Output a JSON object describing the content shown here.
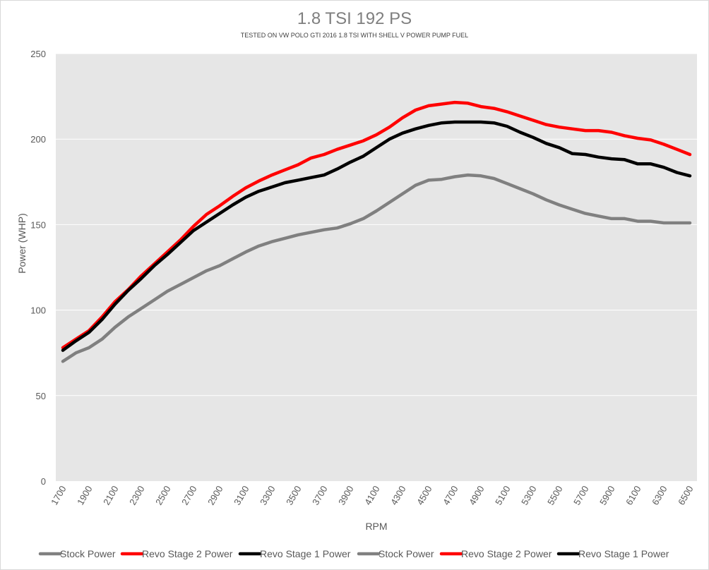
{
  "chart_data": {
    "type": "line",
    "title": "1.8 TSI 192 PS",
    "subtitle": "TESTED ON VW POLO GTI 2016 1.8 TSI WITH SHELL V POWER PUMP FUEL",
    "xlabel": "RPM",
    "ylabel": "Power (WHP)",
    "ylim": [
      0,
      250
    ],
    "yticks": [
      0,
      50,
      100,
      150,
      200,
      250
    ],
    "xlim": [
      1700,
      6500
    ],
    "xticks": [
      1700,
      1900,
      2100,
      2300,
      2500,
      2700,
      2900,
      3100,
      3300,
      3500,
      3700,
      3900,
      4100,
      4300,
      4500,
      4700,
      4900,
      5100,
      5300,
      5500,
      5700,
      5900,
      6100,
      6300,
      6500
    ],
    "grid": true,
    "legend_position": "bottom",
    "x": [
      1700,
      1800,
      1900,
      2000,
      2100,
      2200,
      2300,
      2400,
      2500,
      2600,
      2700,
      2800,
      2900,
      3000,
      3100,
      3200,
      3300,
      3400,
      3500,
      3600,
      3700,
      3800,
      3900,
      4000,
      4100,
      4200,
      4300,
      4400,
      4500,
      4600,
      4700,
      4800,
      4900,
      5000,
      5100,
      5200,
      5300,
      5400,
      5500,
      5600,
      5700,
      5800,
      5900,
      6000,
      6100,
      6200,
      6300,
      6400,
      6500
    ],
    "series": [
      {
        "name": "Stock Power",
        "color": "#808080",
        "values": [
          70,
          75,
          78,
          83,
          90,
          96,
          101,
          106,
          111,
          115,
          119,
          123,
          126,
          130,
          134,
          137.5,
          140,
          142,
          144,
          145.5,
          147,
          148,
          150.5,
          153.5,
          158,
          163,
          168,
          173,
          176,
          176.5,
          178,
          179,
          178.5,
          177,
          174,
          171,
          168,
          164.5,
          161.5,
          159,
          156.5,
          155,
          153.5,
          153.5,
          152,
          152,
          151,
          151,
          151
        ]
      },
      {
        "name": "Revo Stage 2 Power",
        "color": "#ff0000",
        "values": [
          78,
          83,
          88,
          96,
          105,
          112,
          120,
          127,
          134,
          141,
          149,
          156,
          161,
          166.5,
          171.5,
          175.5,
          179,
          182,
          185,
          189,
          191,
          194,
          196.5,
          199,
          202.5,
          207,
          212.5,
          217,
          219.5,
          220.5,
          221.5,
          221,
          219,
          218,
          216,
          213.5,
          211,
          208.5,
          207,
          206,
          205,
          205,
          204,
          202,
          200.5,
          199.5,
          197,
          194,
          191
        ]
      },
      {
        "name": "Revo Stage 1 Power",
        "color": "#000000",
        "values": [
          76.5,
          82,
          87,
          94.5,
          103.5,
          111.5,
          118.5,
          126,
          132.5,
          139.5,
          146.5,
          151.5,
          156.5,
          161.5,
          166,
          169.5,
          172,
          174.5,
          176,
          177.5,
          179,
          182.5,
          186.5,
          190,
          195,
          200,
          203.5,
          206,
          208,
          209.5,
          210,
          210,
          210,
          209.5,
          207.5,
          204,
          201,
          197.5,
          195,
          191.5,
          191,
          189.5,
          188.5,
          188,
          185.5,
          185.5,
          183.5,
          180.5,
          178.5
        ]
      }
    ],
    "legend_entries": [
      "Stock Power",
      "Revo Stage 2 Power",
      "Revo Stage 1 Power",
      "Stock Power",
      "Revo Stage 2 Power",
      "Revo Stage 1 Power"
    ],
    "legend_colors": [
      "#808080",
      "#ff0000",
      "#000000",
      "#808080",
      "#ff0000",
      "#000000"
    ],
    "colors": {
      "plot_background": "#e6e6e6",
      "gridline": "#ffffff"
    }
  }
}
